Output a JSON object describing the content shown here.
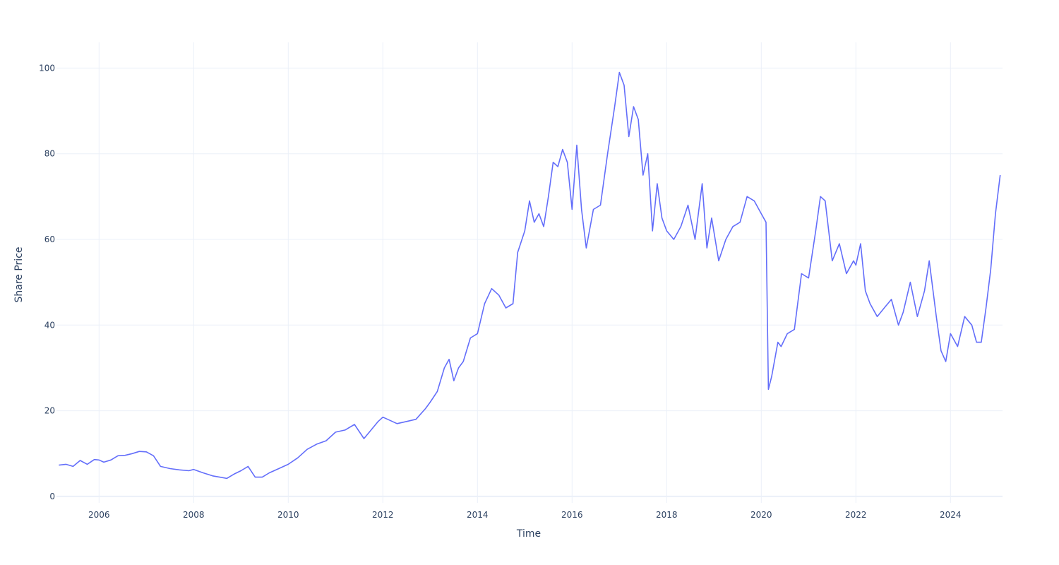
{
  "chart_data": {
    "type": "line",
    "title": "",
    "xlabel": "Time",
    "ylabel": "Share Price",
    "xlim": [
      2005.1,
      2025.1
    ],
    "ylim": [
      -1.5,
      106
    ],
    "x_tick_labels": [
      "2006",
      "2008",
      "2010",
      "2012",
      "2014",
      "2016",
      "2018",
      "2020",
      "2022",
      "2024"
    ],
    "y_tick_labels": [
      "0",
      "20",
      "40",
      "60",
      "80",
      "100"
    ],
    "grid": true,
    "legend": "none",
    "colors": {
      "line": "#636efa",
      "grid": "#ebf0f8",
      "text": "#2a3f5f"
    },
    "series": [
      {
        "x": [
          2005.15,
          2005.3,
          2005.45,
          2005.6,
          2005.75,
          2005.9,
          2006.0,
          2006.1,
          2006.25,
          2006.4,
          2006.55,
          2006.7,
          2006.85,
          2007.0,
          2007.15,
          2007.3,
          2007.5,
          2007.7,
          2007.9,
          2008.0,
          2008.2,
          2008.4,
          2008.55,
          2008.7,
          2008.85,
          2009.0,
          2009.15,
          2009.3,
          2009.45,
          2009.6,
          2009.8,
          2010.0,
          2010.2,
          2010.4,
          2010.6,
          2010.8,
          2011.0,
          2011.2,
          2011.4,
          2011.6,
          2011.75,
          2011.9,
          2012.0,
          2012.1,
          2012.3,
          2012.5,
          2012.7,
          2012.9,
          2013.0,
          2013.15,
          2013.3,
          2013.4,
          2013.5,
          2013.6,
          2013.7,
          2013.85,
          2014.0,
          2014.15,
          2014.3,
          2014.45,
          2014.6,
          2014.75,
          2014.85,
          2015.0,
          2015.1,
          2015.2,
          2015.3,
          2015.4,
          2015.5,
          2015.6,
          2015.7,
          2015.8,
          2015.9,
          2016.0,
          2016.1,
          2016.2,
          2016.3,
          2016.45,
          2016.6,
          2016.75,
          2016.9,
          2017.0,
          2017.1,
          2017.2,
          2017.3,
          2017.4,
          2017.5,
          2017.6,
          2017.7,
          2017.8,
          2017.9,
          2018.0,
          2018.15,
          2018.3,
          2018.45,
          2018.6,
          2018.75,
          2018.85,
          2018.95,
          2019.1,
          2019.25,
          2019.4,
          2019.55,
          2019.7,
          2019.85,
          2020.0,
          2020.1,
          2020.15,
          2020.22,
          2020.35,
          2020.42,
          2020.55,
          2020.7,
          2020.85,
          2021.0,
          2021.15,
          2021.25,
          2021.35,
          2021.5,
          2021.65,
          2021.8,
          2021.95,
          2022.0,
          2022.1,
          2022.2,
          2022.3,
          2022.45,
          2022.6,
          2022.75,
          2022.9,
          2023.0,
          2023.15,
          2023.3,
          2023.45,
          2023.55,
          2023.7,
          2023.8,
          2023.9,
          2024.0,
          2024.15,
          2024.3,
          2024.45,
          2024.55,
          2024.65,
          2024.75,
          2024.85,
          2024.95,
          2025.05
        ],
        "y": [
          7.3,
          7.5,
          7.0,
          8.4,
          7.5,
          8.6,
          8.5,
          8.0,
          8.5,
          9.5,
          9.6,
          10.0,
          10.5,
          10.4,
          9.5,
          7.0,
          6.5,
          6.2,
          6.0,
          6.3,
          5.5,
          4.8,
          4.5,
          4.2,
          5.2,
          6.0,
          7.0,
          4.5,
          4.5,
          5.5,
          6.5,
          7.5,
          9.0,
          11.0,
          12.2,
          13.0,
          15.0,
          15.5,
          16.8,
          13.5,
          15.5,
          17.5,
          18.5,
          18.0,
          17.0,
          17.5,
          18.0,
          20.5,
          22.0,
          24.5,
          30.0,
          32.0,
          27.0,
          30.0,
          31.5,
          37.0,
          38.0,
          45.0,
          48.5,
          47.0,
          44.0,
          45.0,
          57.0,
          62.0,
          69.0,
          64.0,
          66.0,
          63.0,
          70.0,
          78.0,
          77.0,
          81.0,
          78.0,
          67.0,
          82.0,
          67.0,
          58.0,
          67.0,
          68.0,
          80.0,
          91.0,
          99.0,
          96.0,
          84.0,
          91.0,
          88.0,
          75.0,
          80.0,
          62.0,
          73.0,
          65.0,
          62.0,
          60.0,
          63.0,
          68.0,
          60.0,
          73.0,
          58.0,
          65.0,
          55.0,
          60.0,
          63.0,
          64.0,
          70.0,
          69.0,
          66.0,
          64.0,
          25.0,
          28.0,
          36.0,
          35.0,
          38.0,
          39.0,
          52.0,
          51.0,
          62.0,
          70.0,
          69.0,
          55.0,
          59.0,
          52.0,
          55.0,
          54.0,
          59.0,
          48.0,
          45.0,
          42.0,
          44.0,
          46.0,
          40.0,
          43.0,
          50.0,
          42.0,
          48.0,
          55.0,
          42.0,
          34.0,
          31.5,
          38.0,
          35.0,
          42.0,
          40.0,
          36.0,
          36.0,
          44.0,
          53.0,
          66.0,
          75.0
        ]
      }
    ]
  }
}
